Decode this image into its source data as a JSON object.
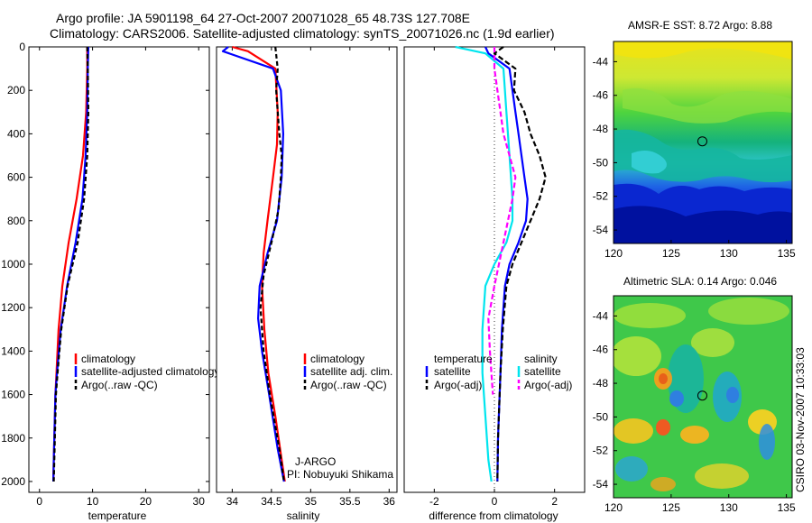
{
  "header": {
    "line1": "Argo profile: JA 5901198_64 27-Oct-2007 20071028_65 48.73S 127.708E",
    "line2": "Climatology: CARS2006. Satellite-adjusted climatology: synTS_20071026.nc (1.9d earlier)"
  },
  "side_stamp": "CSIRO 03-Nov-2007 10:33:03",
  "colors": {
    "climatology": "#ff0000",
    "satellite": "#0000ff",
    "argo": "#000000",
    "temp_satellite_diff": "#00e5ee",
    "temp_argo_diff": "#ff00ff",
    "marker": "#000000"
  },
  "chart_data": [
    {
      "type": "line",
      "id": "temperature_profile",
      "xlabel": "temperature",
      "xlim": [
        -2,
        32
      ],
      "xticks": [
        "0",
        "10",
        "20",
        "30"
      ],
      "ylim": [
        0,
        2050
      ],
      "yticks": [
        "0",
        "200",
        "400",
        "600",
        "800",
        "1000",
        "1200",
        "1400",
        "1600",
        "1800",
        "2000"
      ],
      "legend": [
        "climatology",
        "satellite-adjusted climatology",
        "Argo(..raw -QC)"
      ],
      "series": [
        {
          "name": "climatology",
          "x": [
            9.0,
            9.0,
            8.8,
            8.2,
            7.0,
            5.5,
            4.3,
            3.6,
            3.2,
            3.0,
            2.8,
            2.7,
            2.6
          ],
          "y": [
            0,
            100,
            300,
            500,
            700,
            900,
            1100,
            1300,
            1500,
            1600,
            1800,
            1900,
            2000
          ]
        },
        {
          "name": "satellite-adjusted climatology",
          "x": [
            9.2,
            9.1,
            9.0,
            8.7,
            8.1,
            6.8,
            5.2,
            4.0,
            3.3,
            3.0,
            2.8,
            2.7,
            2.6
          ],
          "y": [
            0,
            100,
            300,
            500,
            700,
            900,
            1100,
            1300,
            1500,
            1600,
            1800,
            1900,
            2000
          ]
        },
        {
          "name": "Argo(..raw -QC)",
          "x": [
            9.0,
            9.1,
            9.2,
            9.0,
            8.4,
            7.2,
            5.3,
            4.1,
            3.4,
            3.1,
            2.9,
            2.8,
            2.7
          ],
          "y": [
            0,
            100,
            300,
            500,
            700,
            900,
            1100,
            1300,
            1500,
            1600,
            1800,
            1900,
            2000
          ]
        }
      ]
    },
    {
      "type": "line",
      "id": "salinity_profile",
      "xlabel": "salinity",
      "xlim": [
        33.8,
        36.1
      ],
      "xticks": [
        "34",
        "34.5",
        "35",
        "35.5",
        "36"
      ],
      "ylim": [
        0,
        2050
      ],
      "legend": [
        "climatology",
        "satellite adj. clim.",
        "Argo(..raw -QC)"
      ],
      "credit": [
        "J-ARGO",
        "PI: Nobuyuki Shikama"
      ],
      "series": [
        {
          "name": "climatology",
          "x": [
            34.0,
            34.2,
            34.55,
            34.58,
            34.57,
            34.52,
            34.45,
            34.4,
            34.38,
            34.41,
            34.46,
            34.55,
            34.63,
            34.67
          ],
          "y": [
            0,
            20,
            100,
            300,
            450,
            600,
            800,
            950,
            1100,
            1300,
            1500,
            1700,
            1900,
            2000
          ]
        },
        {
          "name": "satellite adj. clim.",
          "x": [
            33.95,
            33.88,
            34.52,
            34.62,
            34.65,
            34.63,
            34.57,
            34.45,
            34.35,
            34.33,
            34.38,
            34.47,
            34.58,
            34.66
          ],
          "y": [
            0,
            20,
            100,
            200,
            400,
            600,
            800,
            950,
            1100,
            1250,
            1400,
            1600,
            1850,
            2000
          ]
        },
        {
          "name": "Argo(..raw -QC)",
          "x": [
            34.55,
            34.58,
            34.56,
            34.6,
            34.63,
            34.62,
            34.59,
            34.5,
            34.4,
            34.36,
            34.4,
            34.48,
            34.6,
            34.66
          ],
          "y": [
            0,
            100,
            200,
            400,
            500,
            600,
            750,
            900,
            1050,
            1200,
            1400,
            1600,
            1850,
            2000
          ]
        }
      ]
    },
    {
      "type": "line",
      "id": "difference_profile",
      "xlabel": "difference from climatology",
      "xlim": [
        -3,
        3
      ],
      "xticks": [
        "-2",
        "0",
        "2"
      ],
      "ylim": [
        0,
        2050
      ],
      "legend_groups": [
        {
          "title": "temperature",
          "entries": [
            "satellite",
            "Argo(-adj)"
          ]
        },
        {
          "title": "salinity",
          "entries": [
            "satellite",
            "Argo(-adj)"
          ]
        }
      ],
      "series": [
        {
          "name": "salinity satellite",
          "x": [
            -0.3,
            -0.2,
            0.5,
            0.6,
            0.7,
            0.8,
            0.9,
            1.0,
            1.1,
            1.05,
            0.8,
            0.5,
            0.35,
            0.25,
            0.2,
            0.12,
            0.1
          ],
          "y": [
            0,
            30,
            100,
            200,
            300,
            400,
            500,
            600,
            700,
            800,
            900,
            1000,
            1100,
            1300,
            1500,
            1800,
            2000
          ]
        },
        {
          "name": "salinity Argo(-adj)",
          "x": [
            0.3,
            0.0,
            0.7,
            0.65,
            1.0,
            1.2,
            1.5,
            1.7,
            1.5,
            1.2,
            0.9,
            0.6,
            0.4,
            0.28,
            0.2,
            0.12,
            0.1
          ],
          "y": [
            0,
            30,
            100,
            200,
            300,
            400,
            500,
            600,
            700,
            800,
            900,
            1000,
            1100,
            1300,
            1500,
            1800,
            2000
          ]
        },
        {
          "name": "temperature satellite",
          "x": [
            -1.3,
            -0.3,
            0.3,
            0.4,
            0.5,
            0.6,
            0.6,
            0.4,
            0.0,
            -0.3,
            -0.4,
            -0.4,
            -0.3,
            -0.2,
            -0.1
          ],
          "y": [
            0,
            30,
            100,
            300,
            500,
            700,
            800,
            900,
            1000,
            1100,
            1300,
            1500,
            1700,
            1900,
            2000
          ]
        },
        {
          "name": "temperature Argo(-adj)",
          "x": [
            0.0,
            0.0,
            0.1,
            0.2,
            0.3,
            0.5,
            0.7,
            0.6,
            0.3,
            0.0,
            -0.2,
            -0.15,
            -0.05
          ],
          "y": [
            0,
            100,
            200,
            300,
            400,
            500,
            600,
            700,
            900,
            1100,
            1250,
            1400,
            1600
          ]
        }
      ]
    },
    {
      "type": "heatmap",
      "id": "sst_map",
      "title": "AMSR-E SST: 8.72 Argo: 8.88",
      "xlim": [
        120,
        135.5
      ],
      "ylim": [
        -54.8,
        -42.8
      ],
      "xticks": [
        "120",
        "125",
        "130",
        "135"
      ],
      "yticks": [
        "-44",
        "-46",
        "-48",
        "-50",
        "-52",
        "-54"
      ],
      "marker": {
        "lon": 127.708,
        "lat": -48.73
      }
    },
    {
      "type": "heatmap",
      "id": "sla_map",
      "title": "Altimetric SLA: 0.14 Argo: 0.046",
      "xlim": [
        120,
        135.5
      ],
      "ylim": [
        -54.8,
        -42.8
      ],
      "xticks": [
        "120",
        "125",
        "130",
        "135"
      ],
      "yticks": [
        "-44",
        "-46",
        "-48",
        "-50",
        "-52",
        "-54"
      ],
      "marker": {
        "lon": 127.708,
        "lat": -48.73
      }
    }
  ]
}
